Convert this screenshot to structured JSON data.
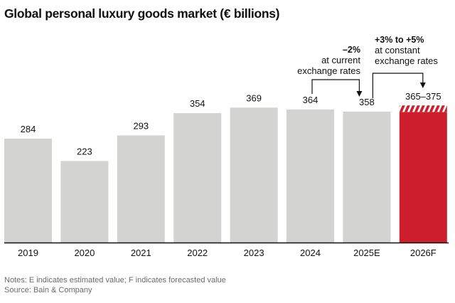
{
  "chart_data": {
    "type": "bar",
    "title": "Global personal luxury goods market (€ billions)",
    "xlabel": "",
    "ylabel": "",
    "categories": [
      "2019",
      "2020",
      "2021",
      "2022",
      "2023",
      "2024",
      "2025E",
      "2026F"
    ],
    "values": [
      284,
      223,
      293,
      354,
      369,
      364,
      358,
      370
    ],
    "value_labels": [
      "284",
      "223",
      "293",
      "354",
      "369",
      "364",
      "358",
      "365–375"
    ],
    "forecast_range": {
      "category": "2026F",
      "low": 365,
      "high": 375
    },
    "ylim": [
      0,
      420
    ],
    "grid": false,
    "colors": {
      "actual": "#d3d3d2",
      "forecast": "#cc1f2b",
      "axis": "#111111"
    },
    "annotations": [
      {
        "id": "change-2025",
        "from": "2024",
        "to": "2025E",
        "headline": "–2%",
        "lines": [
          "at current",
          "exchange rates"
        ]
      },
      {
        "id": "change-2026",
        "from": "2025E",
        "to": "2026F",
        "headline": "+3% to +5%",
        "lines": [
          "at constant",
          "exchange rates"
        ]
      }
    ]
  },
  "footer": {
    "notes": "Notes: E indicates estimated value; F indicates forecasted value",
    "source": "Source: Bain & Company"
  }
}
